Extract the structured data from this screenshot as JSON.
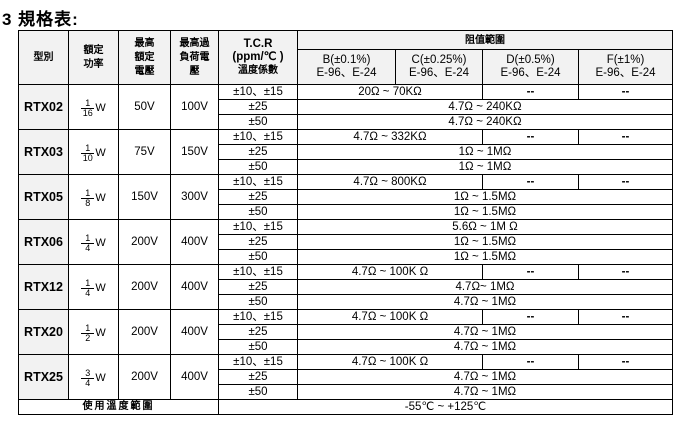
{
  "title": "3 規格表:",
  "header": {
    "model": "型別",
    "power": "額定功率",
    "max_voltage": "最高額定電壓",
    "overload_voltage": "最高過負荷電壓",
    "tcr_1": "T.C.R",
    "tcr_2": "(ppm/℃ )",
    "tcr_3": "溫度係數",
    "range": "阻值範圍",
    "tolerances": [
      {
        "grade": "B(±0.1%)",
        "series": "E-96、E-24"
      },
      {
        "grade": "C(±0.25%)",
        "series": "E-96、E-24"
      },
      {
        "grade": "D(±0.5%)",
        "series": "E-96、E-24"
      },
      {
        "grade": "F(±1%)",
        "series": "E-96、E-24"
      }
    ]
  },
  "rows": [
    {
      "model": "RTX02",
      "num": "1",
      "den": "16",
      "unit": "W",
      "vmax": "50V",
      "vover": "100V",
      "tcr": [
        "±10、±15",
        "±25",
        "±50"
      ],
      "r1_bc": "20Ω ~ 70KΩ",
      "r1_d": "--",
      "r1_f": "--",
      "r2": "4.7Ω ~ 240KΩ",
      "r3": "4.7Ω ~ 240KΩ"
    },
    {
      "model": "RTX03",
      "num": "1",
      "den": "10",
      "unit": "W",
      "vmax": "75V",
      "vover": "150V",
      "tcr": [
        "±10、±15",
        "±25",
        "±50"
      ],
      "r1_bc": "4.7Ω ~ 332KΩ",
      "r1_d": "--",
      "r1_f": "--",
      "r2": "1Ω ~ 1MΩ",
      "r3": "1Ω ~ 1MΩ"
    },
    {
      "model": "RTX05",
      "num": "1",
      "den": "8",
      "unit": "W",
      "vmax": "150V",
      "vover": "300V",
      "tcr": [
        "±10、±15",
        "±25",
        "±50"
      ],
      "r1_bc": "4.7Ω ~ 800KΩ",
      "r1_d": "--",
      "r1_f": "--",
      "r2": "1Ω ~ 1.5MΩ",
      "r3": "1Ω ~ 1.5MΩ"
    },
    {
      "model": "RTX06",
      "num": "1",
      "den": "4",
      "unit": "W",
      "vmax": "200V",
      "vover": "400V",
      "tcr": [
        "±10、±15",
        "±25",
        "±50"
      ],
      "r1_all": "5.6Ω ~ 1M Ω",
      "r2": "1Ω ~ 1.5MΩ",
      "r3": "1Ω ~ 1.5MΩ"
    },
    {
      "model": "RTX12",
      "num": "1",
      "den": "4",
      "unit": "W",
      "vmax": "200V",
      "vover": "400V",
      "tcr": [
        "±10、±15",
        "±25",
        "±50"
      ],
      "r1_bc": "4.7Ω ~ 100K Ω",
      "r1_d": "--",
      "r1_f": "--",
      "r2": "4.7Ω~ 1MΩ",
      "r3": "4.7Ω ~ 1MΩ"
    },
    {
      "model": "RTX20",
      "num": "1",
      "den": "2",
      "unit": "W",
      "vmax": "200V",
      "vover": "400V",
      "tcr": [
        "±10、±15",
        "±25",
        "±50"
      ],
      "r1_bc": "4.7Ω ~ 100K Ω",
      "r1_d": "--",
      "r1_f": "--",
      "r2": "4.7Ω ~ 1MΩ",
      "r3": "4.7Ω ~ 1MΩ"
    },
    {
      "model": "RTX25",
      "num": "3",
      "den": "4",
      "unit": "W",
      "vmax": "200V",
      "vover": "400V",
      "tcr": [
        "±10、±15",
        "±25",
        "±50"
      ],
      "r1_bc": "4.7Ω ~ 100K Ω",
      "r1_d": "--",
      "r1_f": "--",
      "r2": "4.7Ω ~ 1MΩ",
      "r3": "4.7Ω ~ 1MΩ"
    }
  ],
  "footer": {
    "label": "使用溫度範圍",
    "value": "-55℃ ~ +125℃"
  }
}
